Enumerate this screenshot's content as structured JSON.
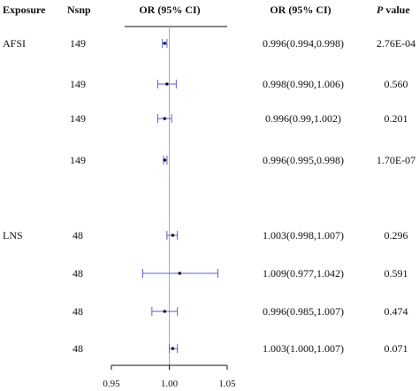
{
  "headers": {
    "exposure": "Exposure",
    "nsnp": "Nsnp",
    "or_plot": "OR (95% CI)",
    "or_text": "OR (95% CI)",
    "p_italic": "P",
    "p_rest": " value"
  },
  "rows": [
    {
      "exposure": "AFSI",
      "nsnp": "149",
      "or_text": "0.996(0.994,0.998)",
      "p": "2.76E-04"
    },
    {
      "exposure": "",
      "nsnp": "149",
      "or_text": "0.998(0.990,1.006)",
      "p": "0.560"
    },
    {
      "exposure": "",
      "nsnp": "149",
      "or_text": "0.996(0.99,1.002)",
      "p": "0.201"
    },
    {
      "exposure": "",
      "nsnp": "149",
      "or_text": "0.996(0.995,0.998)",
      "p": "1.70E-07"
    },
    {
      "exposure": "LNS",
      "nsnp": "48",
      "or_text": "1.003(0.998,1.007)",
      "p": "0.296"
    },
    {
      "exposure": "",
      "nsnp": "48",
      "or_text": "1.009(0.977,1.042)",
      "p": "0.591"
    },
    {
      "exposure": "",
      "nsnp": "48",
      "or_text": "0.996(0.985,1.007)",
      "p": "0.474"
    },
    {
      "exposure": "",
      "nsnp": "48",
      "or_text": "1.003(1.000,1.007)",
      "p": "0.071"
    }
  ],
  "chart_data": {
    "type": "forest",
    "xlim": [
      0.95,
      1.05
    ],
    "xticks": [
      "0.95",
      "1.00",
      "1.05"
    ],
    "reference_line": 1.0,
    "ci_color": "#5b5bd6",
    "point_color": "#000000",
    "points": [
      {
        "or": 0.996,
        "lo": 0.994,
        "hi": 0.998
      },
      {
        "or": 0.998,
        "lo": 0.99,
        "hi": 1.006
      },
      {
        "or": 0.996,
        "lo": 0.99,
        "hi": 1.002
      },
      {
        "or": 0.996,
        "lo": 0.995,
        "hi": 0.998
      },
      {
        "or": 1.003,
        "lo": 0.998,
        "hi": 1.007
      },
      {
        "or": 1.009,
        "lo": 0.977,
        "hi": 1.042
      },
      {
        "or": 0.996,
        "lo": 0.985,
        "hi": 1.007
      },
      {
        "or": 1.003,
        "lo": 1.0,
        "hi": 1.007
      }
    ]
  }
}
